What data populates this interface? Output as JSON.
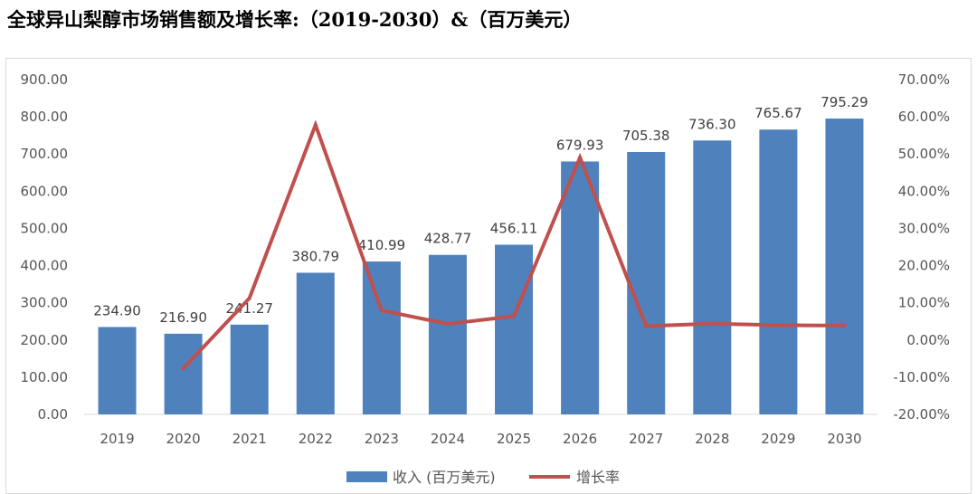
{
  "title": "全球异山梨醇市场销售额及增长率:（2019-2030）&（百万美元）",
  "chart_data": {
    "type": "bar+line",
    "title": "全球异山梨醇市场销售额及增长率:（2019-2030）&（百万美元）",
    "categories": [
      "2019",
      "2020",
      "2021",
      "2022",
      "2023",
      "2024",
      "2025",
      "2026",
      "2027",
      "2028",
      "2029",
      "2030"
    ],
    "series": [
      {
        "name": "收入 (百万美元)",
        "type": "bar",
        "axis": "left",
        "color": "#4f81bd",
        "values": [
          234.9,
          216.9,
          241.27,
          380.79,
          410.99,
          428.77,
          456.11,
          679.93,
          705.38,
          736.3,
          765.67,
          795.29
        ],
        "labels": [
          "234.90",
          "216.90",
          "241.27",
          "380.79",
          "410.99",
          "428.77",
          "456.11",
          "679.93",
          "705.38",
          "736.30",
          "765.67",
          "795.29"
        ]
      },
      {
        "name": "增长率",
        "type": "line",
        "axis": "right",
        "color": "#c0504d",
        "values": [
          null,
          -7.66,
          11.24,
          57.83,
          7.93,
          4.33,
          6.38,
          49.07,
          3.74,
          4.38,
          3.99,
          3.87
        ]
      }
    ],
    "y_left": {
      "min": 0,
      "max": 900,
      "ticks": [
        "0.00",
        "100.00",
        "200.00",
        "300.00",
        "400.00",
        "500.00",
        "600.00",
        "700.00",
        "800.00",
        "900.00"
      ]
    },
    "y_right": {
      "min": -20,
      "max": 70,
      "ticks": [
        "-20.00%",
        "-10.00%",
        "0.00%",
        "10.00%",
        "20.00%",
        "30.00%",
        "40.00%",
        "50.00%",
        "60.00%",
        "70.00%"
      ]
    },
    "grid": false,
    "legend": {
      "position": "bottom",
      "items": [
        {
          "label": "收入 (百万美元)",
          "color": "#4f81bd",
          "shape": "bar"
        },
        {
          "label": "增长率",
          "color": "#c0504d",
          "shape": "line"
        }
      ]
    }
  }
}
